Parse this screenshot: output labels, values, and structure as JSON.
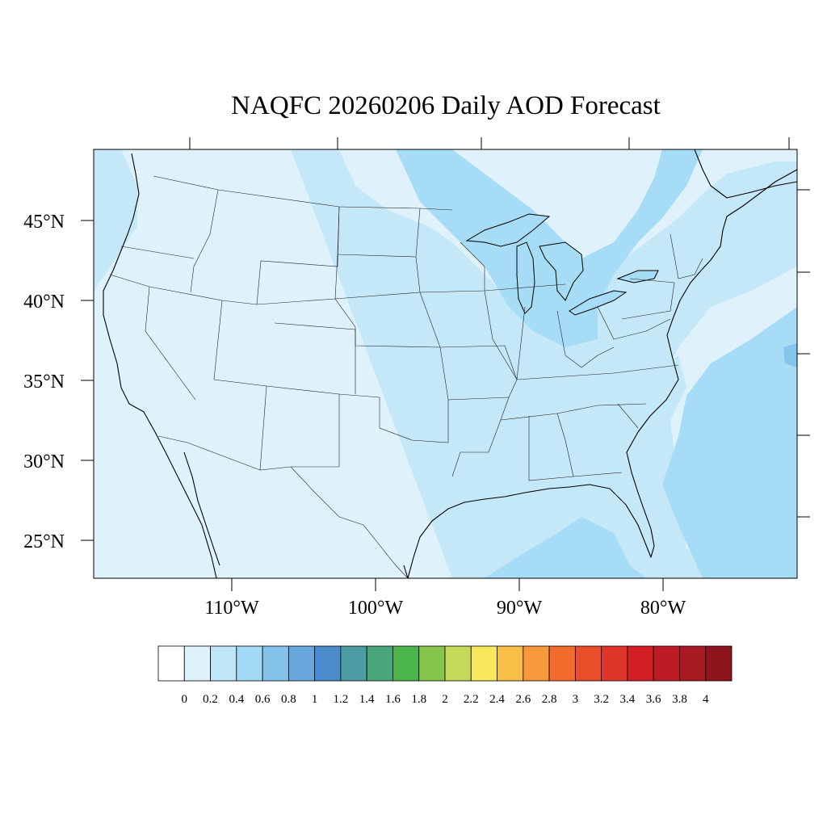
{
  "title": "NAQFC 20260206 Daily AOD Forecast",
  "map": {
    "lat_labels": [
      "45°N",
      "40°N",
      "35°N",
      "30°N",
      "25°N"
    ],
    "lon_labels": [
      "110°W",
      "100°W",
      "90°W",
      "80°W"
    ],
    "field_colors": {
      "land": "#dff2fb",
      "light": "#c4e8f8",
      "medium": "#a6dcf5",
      "dark": "#86c6ec",
      "ocean": "#a6dcf5"
    }
  },
  "colorbar": {
    "colors": [
      "#ffffff",
      "#dff2fb",
      "#bfe6f8",
      "#a2d9f4",
      "#86c3ea",
      "#68a8dc",
      "#4b8ccd",
      "#4c9ca3",
      "#49a57a",
      "#4cb44c",
      "#85c54d",
      "#c5d85a",
      "#f8e95c",
      "#f8bf48",
      "#f7983b",
      "#f26c2c",
      "#e94e2a",
      "#df3629",
      "#d21f26",
      "#bd1b25",
      "#a81923",
      "#8f151c"
    ],
    "labels": [
      "0",
      "0.2",
      "0.4",
      "0.6",
      "0.8",
      "1",
      "1.2",
      "1.4",
      "1.6",
      "1.8",
      "2",
      "2.2",
      "2.4",
      "2.6",
      "2.8",
      "3",
      "3.2",
      "3.4",
      "3.6",
      "3.8",
      "4"
    ]
  }
}
